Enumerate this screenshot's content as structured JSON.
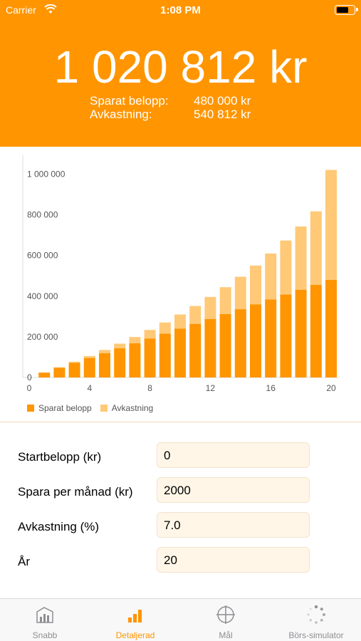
{
  "status_bar": {
    "carrier": "Carrier",
    "time": "1:08 PM"
  },
  "summary": {
    "total": "1 020 812 kr",
    "saved_label": "Sparat belopp:",
    "saved_value": "480 000 kr",
    "return_label": "Avkastning:",
    "return_value": "540 812 kr"
  },
  "colors": {
    "accent": "#FF9500",
    "saved": "#FF9500",
    "return": "#FFC978",
    "input_bg": "#FFF6E8"
  },
  "chart_data": {
    "type": "bar",
    "stacked": true,
    "categories": [
      1,
      2,
      3,
      4,
      5,
      6,
      7,
      8,
      9,
      10,
      11,
      12,
      13,
      14,
      15,
      16,
      17,
      18,
      19,
      20
    ],
    "series": [
      {
        "name": "Sparat belopp",
        "values": [
          24000,
          48000,
          72000,
          96000,
          120000,
          144000,
          168000,
          192000,
          216000,
          240000,
          264000,
          288000,
          312000,
          336000,
          360000,
          384000,
          408000,
          432000,
          456000,
          480000
        ]
      },
      {
        "name": "Avkastning",
        "values": [
          900,
          2700,
          5500,
          9700,
          15300,
          22400,
          31100,
          41800,
          54600,
          69800,
          87600,
          108300,
          132100,
          159400,
          190500,
          225800,
          265700,
          310700,
          361300,
          540812
        ]
      }
    ],
    "xticks": [
      "0",
      "4",
      "8",
      "12",
      "16",
      "20"
    ],
    "xtick_values": [
      0,
      4,
      8,
      12,
      16,
      20
    ],
    "yticks": [
      "0",
      "200 000",
      "400 000",
      "600 000",
      "800 000",
      "1 000 000"
    ],
    "ytick_values": [
      0,
      200000,
      400000,
      600000,
      800000,
      1000000
    ],
    "xlim": [
      0,
      20.5
    ],
    "ylim": [
      0,
      1100000
    ],
    "legend": "bottom-left",
    "grid": false
  },
  "form": {
    "start_label": "Startbelopp (kr)",
    "start_value": "0",
    "monthly_label": "Spara per månad (kr)",
    "monthly_value": "2000",
    "return_label": "Avkastning (%)",
    "return_value": "7.0",
    "years_label": "År",
    "years_value": "20"
  },
  "tabs": [
    {
      "label": "Snabb",
      "icon": "chart-quick-icon"
    },
    {
      "label": "Detaljerad",
      "icon": "bar-chart-icon"
    },
    {
      "label": "Mål",
      "icon": "target-icon"
    },
    {
      "label": "Börs-simulator",
      "icon": "spinner-icon"
    }
  ]
}
